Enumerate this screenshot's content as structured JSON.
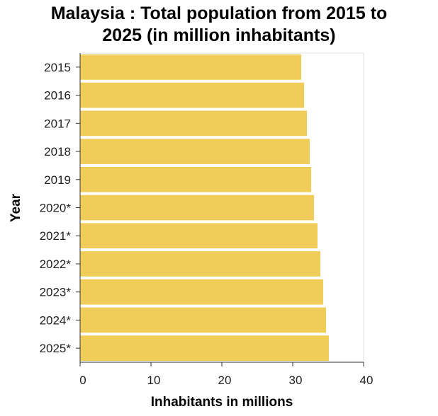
{
  "chart_data": {
    "type": "bar",
    "orientation": "horizontal",
    "title_lines": [
      "Malaysia : Total population from 2015 to",
      "2025 (in million inhabitants)"
    ],
    "xlabel": "Inhabitants in millions",
    "ylabel": "Year",
    "categories": [
      "2015",
      "2016",
      "2017",
      "2018",
      "2019",
      "2020*",
      "2021*",
      "2022*",
      "2023*",
      "2024*",
      "2025*"
    ],
    "values": [
      31.2,
      31.6,
      32.0,
      32.4,
      32.6,
      33.0,
      33.5,
      33.9,
      34.3,
      34.7,
      35.1
    ],
    "xlim": [
      0,
      40
    ],
    "xticks": [
      "0",
      "10",
      "20",
      "30",
      "40"
    ],
    "grid": false,
    "bar_color": "#f0cd58"
  }
}
